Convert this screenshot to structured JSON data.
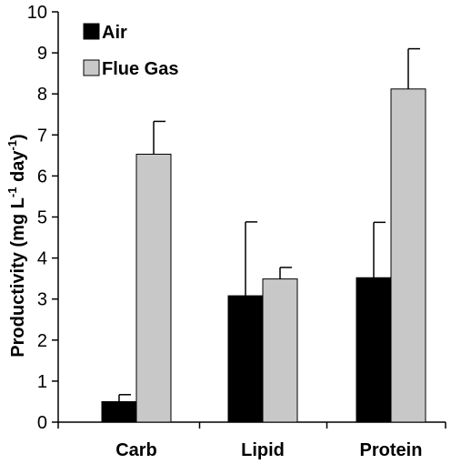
{
  "chart_data": {
    "type": "bar",
    "categories": [
      "Carb",
      "Lipid",
      "Protein"
    ],
    "ylabel": {
      "prefix": "Productivity (mg L",
      "sup1": "-1",
      "middle": " day",
      "sup2": "-1",
      "suffix": ")"
    },
    "ylim": [
      0,
      10
    ],
    "yticks": [
      0,
      1,
      2,
      3,
      4,
      5,
      6,
      7,
      8,
      9,
      10
    ],
    "grid": false,
    "legend_position": "top-left",
    "series": [
      {
        "name": "Air",
        "color": "#000000",
        "values": [
          0.5,
          3.08,
          3.52
        ],
        "errors": [
          0.17,
          1.8,
          1.35
        ]
      },
      {
        "name": "Flue Gas",
        "color": "#c8c8c8",
        "values": [
          6.53,
          3.49,
          8.12
        ],
        "errors": [
          0.8,
          0.28,
          0.98
        ]
      }
    ]
  }
}
